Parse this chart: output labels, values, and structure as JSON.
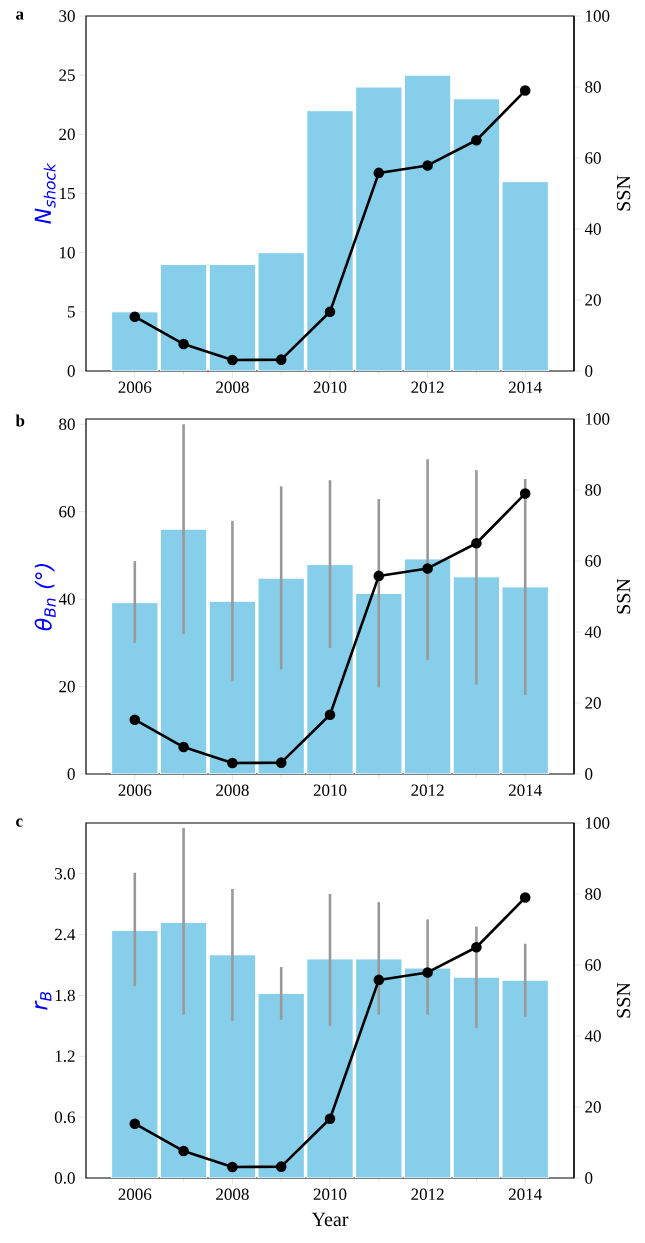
{
  "chart_data": [
    {
      "type": "bar",
      "title": "a",
      "ylabel": "N$_{shock}$",
      "y2label": "SSN",
      "x": [
        2006,
        2007,
        2008,
        2009,
        2010,
        2011,
        2012,
        2013,
        2014
      ],
      "xlim": [
        2005,
        2015
      ],
      "xticks": [
        2006,
        2008,
        2010,
        2012,
        2014
      ],
      "ylim": [
        0,
        30
      ],
      "yticks": [
        0,
        5,
        10,
        15,
        20,
        25,
        30
      ],
      "y2lim": [
        0,
        100
      ],
      "y2ticks": [
        0,
        20,
        40,
        60,
        80,
        100
      ],
      "series": [
        {
          "color": "#87ceeb",
          "values": [
            5,
            9,
            9,
            10,
            22,
            24,
            25,
            23,
            16
          ]
        },
        {
          "type": "line",
          "axis": "y2",
          "color": "#000000",
          "marker": "circle",
          "values": [
            15.3,
            7.6,
            3.1,
            3.2,
            16.7,
            55.8,
            57.9,
            65.0,
            79.0
          ]
        }
      ]
    },
    {
      "type": "bar",
      "title": "b",
      "ylabel": "θ$_{Bn}$ (°)",
      "y2label": "SSN",
      "x": [
        2006,
        2007,
        2008,
        2009,
        2010,
        2011,
        2012,
        2013,
        2014
      ],
      "xlim": [
        2005,
        2015
      ],
      "xticks": [
        2006,
        2008,
        2010,
        2012,
        2014
      ],
      "ylim": [
        0,
        81.2
      ],
      "yticks": [
        0,
        20,
        40,
        60,
        80
      ],
      "y2lim": [
        0,
        100
      ],
      "y2ticks": [
        0,
        20,
        40,
        60,
        80,
        100
      ],
      "series": [
        {
          "color": "#87ceeb",
          "values": [
            39.2,
            56.0,
            39.5,
            44.8,
            47.9,
            41.3,
            49.2,
            45.1,
            42.8
          ],
          "errors": [
            [
              30.0,
              48.7
            ],
            [
              32.0,
              80.0
            ],
            [
              21.3,
              57.9
            ],
            [
              23.9,
              65.8
            ],
            [
              28.8,
              67.2
            ],
            [
              19.8,
              62.9
            ],
            [
              26.1,
              72.0
            ],
            [
              20.5,
              69.5
            ],
            [
              18.1,
              67.5
            ]
          ]
        },
        {
          "type": "line",
          "axis": "y2",
          "color": "#000000",
          "marker": "circle",
          "values": [
            15.3,
            7.6,
            3.1,
            3.2,
            16.7,
            55.8,
            57.9,
            65.0,
            79.0
          ]
        }
      ]
    },
    {
      "type": "bar",
      "title": "c",
      "xlabel": "Year",
      "ylabel": "r$_{B}$",
      "y2label": "SSN",
      "x": [
        2006,
        2007,
        2008,
        2009,
        2010,
        2011,
        2012,
        2013,
        2014
      ],
      "xlim": [
        2005,
        2015
      ],
      "xticks": [
        2006,
        2008,
        2010,
        2012,
        2014
      ],
      "ylim": [
        0,
        3.5
      ],
      "yticks": [
        {
          "value": 0,
          "label": "0.0"
        },
        0.6,
        1.2,
        1.8,
        2.4,
        {
          "value": 3,
          "label": "3.0"
        }
      ],
      "y2lim": [
        0,
        100
      ],
      "y2ticks": [
        0,
        20,
        40,
        60,
        80,
        100
      ],
      "series": [
        {
          "color": "#87ceeb",
          "values": [
            2.44,
            2.52,
            2.2,
            1.82,
            2.16,
            2.16,
            2.07,
            1.98,
            1.95
          ],
          "errors": [
            [
              1.89,
              3.01
            ],
            [
              1.61,
              3.45
            ],
            [
              1.55,
              2.85
            ],
            [
              1.56,
              2.08
            ],
            [
              1.5,
              2.8
            ],
            [
              1.61,
              2.72
            ],
            [
              1.61,
              2.55
            ],
            [
              1.48,
              2.48
            ],
            [
              1.59,
              2.31
            ]
          ]
        },
        {
          "type": "line",
          "axis": "y2",
          "color": "#000000",
          "marker": "circle",
          "values": [
            15.3,
            7.6,
            3.1,
            3.2,
            16.7,
            55.8,
            57.9,
            65.0,
            79.0
          ]
        }
      ]
    }
  ]
}
